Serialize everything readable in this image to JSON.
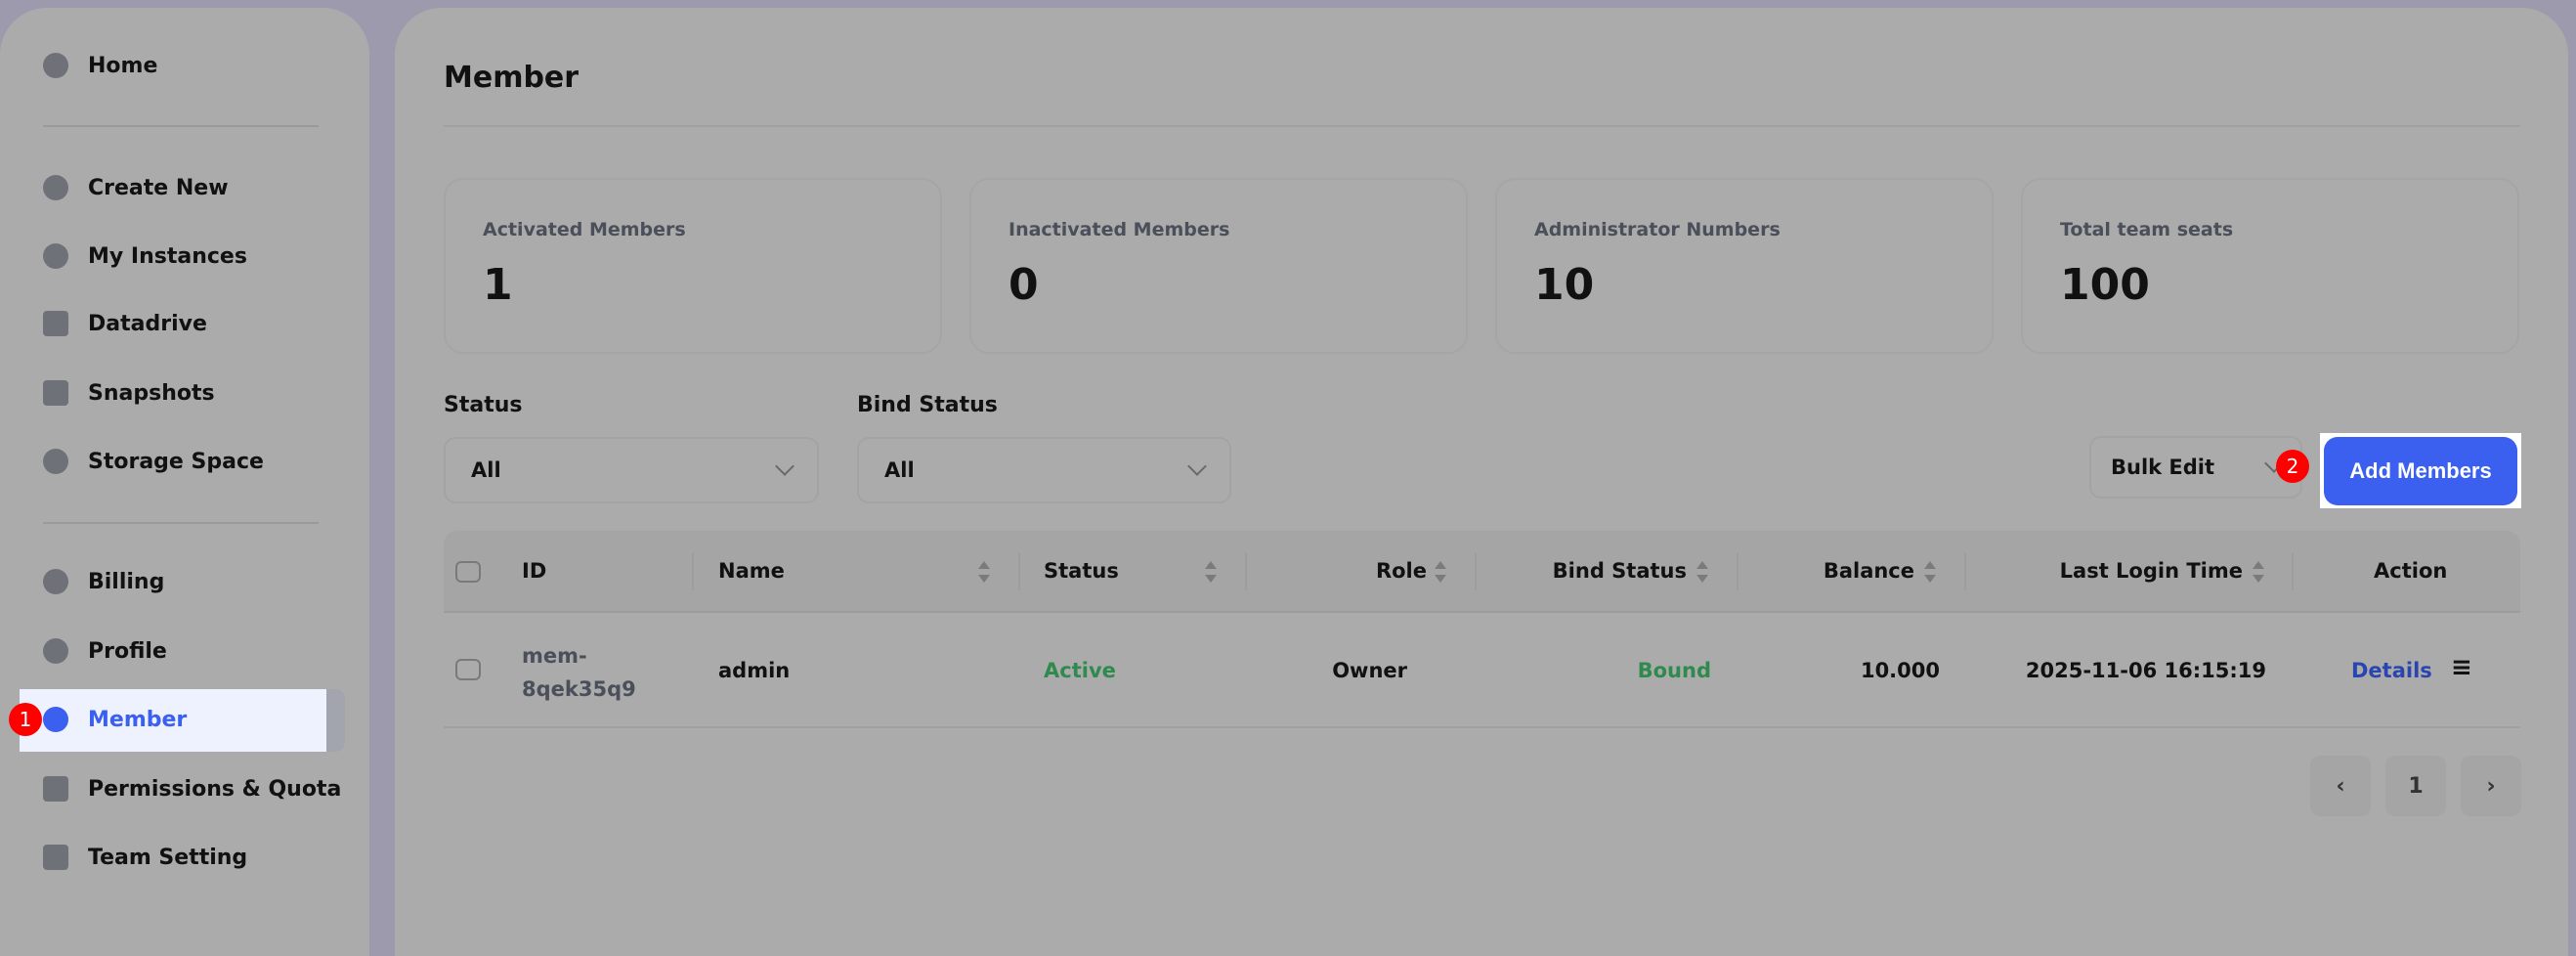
{
  "sidebar": {
    "items": [
      {
        "label": "Home",
        "icon": "gauge-icon"
      },
      {
        "label": "Create New",
        "icon": "globe-icon"
      },
      {
        "label": "My Instances",
        "icon": "cube-icon"
      },
      {
        "label": "Datadrive",
        "icon": "drive-icon"
      },
      {
        "label": "Snapshots",
        "icon": "archive-icon"
      },
      {
        "label": "Storage Space",
        "icon": "storage-icon"
      },
      {
        "label": "Billing",
        "icon": "dollar-icon"
      },
      {
        "label": "Profile",
        "icon": "user-icon"
      },
      {
        "label": "Member",
        "icon": "users-icon",
        "active": true
      },
      {
        "label": "Permissions & Quota",
        "icon": "shield-icon"
      },
      {
        "label": "Team Setting",
        "icon": "building-icon"
      }
    ]
  },
  "annotations": {
    "one": "1",
    "two": "2"
  },
  "page": {
    "title": "Member"
  },
  "stats": [
    {
      "label": "Activated Members",
      "value": "1"
    },
    {
      "label": "Inactivated Members",
      "value": "0"
    },
    {
      "label": "Administrator Numbers",
      "value": "10"
    },
    {
      "label": "Total team seats",
      "value": "100"
    }
  ],
  "filters": {
    "status_label": "Status",
    "status_value": "All",
    "bind_label": "Bind Status",
    "bind_value": "All"
  },
  "toolbar": {
    "bulk_edit": "Bulk Edit",
    "add_members": "Add Members"
  },
  "colors": {
    "accent": "#3b5fee",
    "active": "#2f8a4e",
    "link": "#2a45b0"
  },
  "table": {
    "headers": [
      "ID",
      "Name",
      "Status",
      "Role",
      "Bind Status",
      "Balance",
      "Last Login Time",
      "Action"
    ],
    "rows": [
      {
        "id_1": "mem-",
        "id_2": "8qek35q9",
        "name": "admin",
        "status": "Active",
        "role": "Owner",
        "bind": "Bound",
        "balance": "10.000",
        "last_login": "2025-11-06 16:15:19",
        "action": "Details"
      }
    ]
  },
  "pagination": {
    "current": "1"
  }
}
